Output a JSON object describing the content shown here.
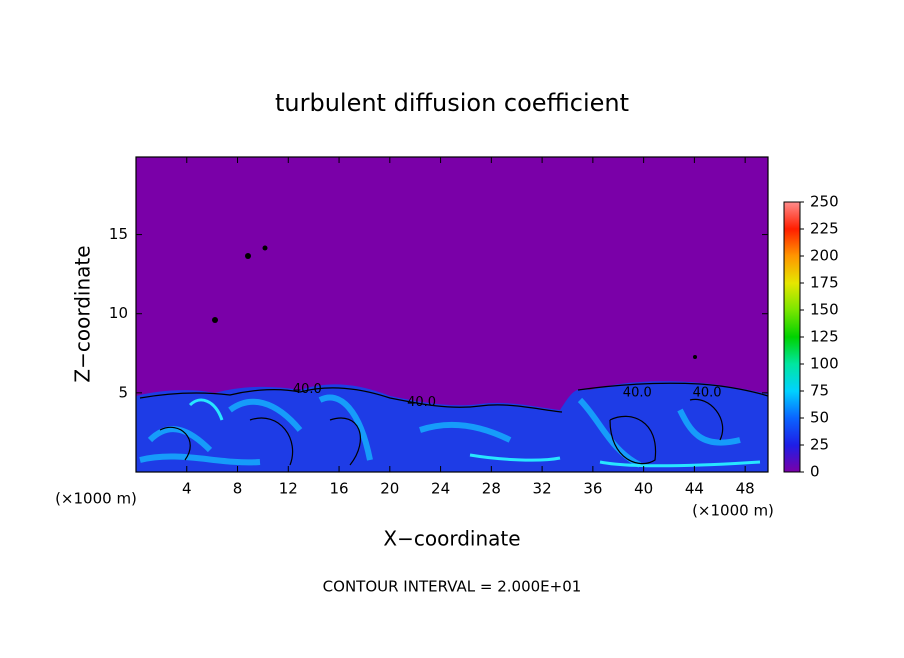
{
  "chart_data": {
    "type": "contour",
    "title": "turbulent diffusion coefficient",
    "xlabel": "X−coordinate",
    "ylabel": "Z−coordinate",
    "xunit": "(×1000 m)",
    "yunit": "(×1000 m)",
    "footer": "CONTOUR INTERVAL = 2.000E+01",
    "xlim": [
      0,
      49.8
    ],
    "xticks": [
      4,
      8,
      12,
      16,
      20,
      24,
      28,
      32,
      36,
      40,
      44,
      48
    ],
    "ylim": [
      0,
      19.9
    ],
    "yticks": [
      5,
      10,
      15
    ],
    "contour_labels": [
      {
        "text": "40.0",
        "x": 13.5,
        "z": 5.2
      },
      {
        "text": "40.0",
        "x": 22.5,
        "z": 4.4
      },
      {
        "text": "40.0",
        "x": 39.5,
        "z": 5.0
      },
      {
        "text": "40.0",
        "x": 45.0,
        "z": 5.0
      }
    ],
    "colorbar": {
      "lim": [
        0,
        250
      ],
      "ticks": [
        0,
        25,
        50,
        75,
        100,
        125,
        150,
        175,
        200,
        225,
        250
      ],
      "colors": [
        "#7a00a8",
        "#1e1ee6",
        "#0a64ff",
        "#00d2ff",
        "#00e6a0",
        "#00d200",
        "#7ae600",
        "#e6e600",
        "#ff9600",
        "#ff1e00",
        "#ff8c8c"
      ]
    }
  }
}
